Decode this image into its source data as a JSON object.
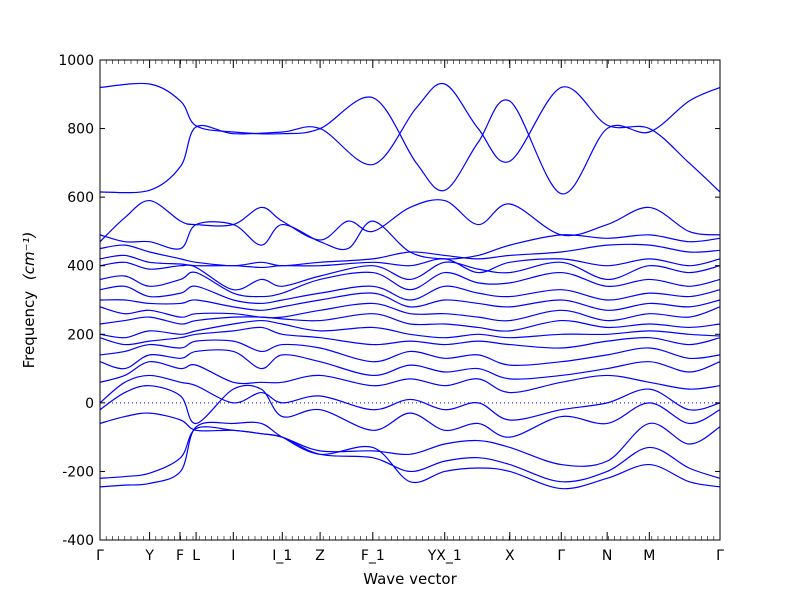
{
  "chart_data": {
    "type": "line",
    "xlabel": "Wave vector",
    "ylabel": "Frequency",
    "ylabel_unit": "(cm⁻¹)",
    "ylim": [
      -400,
      1000
    ],
    "yticks": [
      -400,
      -200,
      0,
      200,
      400,
      600,
      800,
      1000
    ],
    "xlim": [
      0,
      1
    ],
    "xticks": [
      {
        "label": "Γ",
        "x": 0.0
      },
      {
        "label": "Y",
        "x": 0.08
      },
      {
        "label": "F",
        "x": 0.129
      },
      {
        "label": "L",
        "x": 0.155
      },
      {
        "label": "I",
        "x": 0.215
      },
      {
        "label": "I_1",
        "x": 0.294
      },
      {
        "label": "Z",
        "x": 0.355
      },
      {
        "label": "F_1",
        "x": 0.44
      },
      {
        "label": "YX_1",
        "x": 0.556
      },
      {
        "label": "X",
        "x": 0.661
      },
      {
        "label": "Γ",
        "x": 0.744
      },
      {
        "label": "N",
        "x": 0.818
      },
      {
        "label": "M",
        "x": 0.886
      },
      {
        "label": "Γ",
        "x": 1.0
      }
    ],
    "zero_line": {
      "y": 0,
      "style": "dotted"
    },
    "line_color": "#0000ff",
    "series": [
      {
        "x": [
          0,
          0.08,
          0.13,
          0.155,
          0.215,
          0.294,
          0.355,
          0.44,
          0.51,
          0.556,
          0.61,
          0.661,
          0.744,
          0.818,
          0.886,
          0.95,
          1
        ],
        "y": [
          920,
          930,
          880,
          808,
          790,
          785,
          800,
          890,
          700,
          620,
          760,
          880,
          610,
          800,
          790,
          880,
          920
        ]
      },
      {
        "x": [
          0,
          0.08,
          0.13,
          0.155,
          0.215,
          0.294,
          0.355,
          0.44,
          0.51,
          0.556,
          0.61,
          0.661,
          0.744,
          0.818,
          0.886,
          0.95,
          1
        ],
        "y": [
          615,
          620,
          690,
          805,
          785,
          790,
          800,
          695,
          860,
          930,
          800,
          705,
          920,
          810,
          800,
          700,
          615
        ]
      },
      {
        "x": [
          0,
          0.04,
          0.08,
          0.13,
          0.155,
          0.215,
          0.26,
          0.294,
          0.355,
          0.4,
          0.44,
          0.5,
          0.556,
          0.61,
          0.661,
          0.744,
          0.818,
          0.886,
          0.95,
          1
        ],
        "y": [
          470,
          540,
          590,
          530,
          520,
          520,
          570,
          530,
          475,
          530,
          500,
          570,
          590,
          520,
          580,
          490,
          520,
          570,
          500,
          490
        ]
      },
      {
        "x": [
          0,
          0.04,
          0.08,
          0.13,
          0.155,
          0.215,
          0.26,
          0.294,
          0.355,
          0.4,
          0.44,
          0.5,
          0.556,
          0.61,
          0.661,
          0.744,
          0.818,
          0.886,
          0.95,
          1
        ],
        "y": [
          490,
          470,
          470,
          450,
          520,
          520,
          460,
          520,
          470,
          450,
          530,
          440,
          420,
          430,
          460,
          490,
          480,
          490,
          470,
          480
        ]
      },
      {
        "x": [
          0,
          0.04,
          0.08,
          0.13,
          0.155,
          0.215,
          0.26,
          0.294,
          0.355,
          0.44,
          0.5,
          0.556,
          0.61,
          0.661,
          0.744,
          0.818,
          0.886,
          0.95,
          1
        ],
        "y": [
          450,
          460,
          440,
          420,
          410,
          400,
          410,
          400,
          410,
          420,
          440,
          430,
          420,
          430,
          440,
          460,
          460,
          440,
          445
        ]
      },
      {
        "x": [
          0,
          0.04,
          0.08,
          0.13,
          0.155,
          0.215,
          0.26,
          0.294,
          0.355,
          0.44,
          0.5,
          0.556,
          0.61,
          0.661,
          0.744,
          0.818,
          0.886,
          0.95,
          1
        ],
        "y": [
          420,
          430,
          410,
          405,
          400,
          400,
          395,
          400,
          400,
          410,
          400,
          420,
          380,
          410,
          420,
          400,
          420,
          400,
          420
        ]
      },
      {
        "x": [
          0,
          0.04,
          0.08,
          0.13,
          0.155,
          0.215,
          0.26,
          0.294,
          0.355,
          0.44,
          0.5,
          0.556,
          0.61,
          0.661,
          0.744,
          0.818,
          0.886,
          0.95,
          1
        ],
        "y": [
          400,
          410,
          390,
          400,
          395,
          330,
          360,
          340,
          370,
          400,
          360,
          410,
          390,
          380,
          410,
          360,
          400,
          380,
          400
        ]
      },
      {
        "x": [
          0,
          0.04,
          0.08,
          0.13,
          0.155,
          0.215,
          0.26,
          0.294,
          0.355,
          0.44,
          0.5,
          0.556,
          0.61,
          0.661,
          0.744,
          0.818,
          0.886,
          0.95,
          1
        ],
        "y": [
          360,
          370,
          340,
          360,
          380,
          320,
          310,
          320,
          360,
          380,
          330,
          380,
          350,
          350,
          380,
          340,
          360,
          340,
          360
        ]
      },
      {
        "x": [
          0,
          0.04,
          0.08,
          0.13,
          0.155,
          0.215,
          0.26,
          0.294,
          0.355,
          0.44,
          0.5,
          0.556,
          0.61,
          0.661,
          0.744,
          0.818,
          0.886,
          0.95,
          1
        ],
        "y": [
          330,
          340,
          310,
          320,
          340,
          300,
          290,
          300,
          320,
          340,
          300,
          340,
          320,
          310,
          330,
          300,
          320,
          310,
          330
        ]
      },
      {
        "x": [
          0,
          0.04,
          0.08,
          0.13,
          0.155,
          0.215,
          0.26,
          0.294,
          0.355,
          0.44,
          0.5,
          0.556,
          0.61,
          0.661,
          0.744,
          0.818,
          0.886,
          0.95,
          1
        ],
        "y": [
          300,
          300,
          290,
          290,
          300,
          280,
          270,
          280,
          300,
          320,
          280,
          300,
          290,
          280,
          300,
          270,
          290,
          280,
          300
        ]
      },
      {
        "x": [
          0,
          0.04,
          0.08,
          0.13,
          0.155,
          0.215,
          0.26,
          0.294,
          0.355,
          0.44,
          0.5,
          0.556,
          0.61,
          0.661,
          0.744,
          0.818,
          0.886,
          0.95,
          1
        ],
        "y": [
          280,
          260,
          270,
          250,
          260,
          260,
          250,
          250,
          270,
          290,
          260,
          260,
          250,
          240,
          270,
          240,
          260,
          250,
          280
        ]
      },
      {
        "x": [
          0,
          0.04,
          0.08,
          0.13,
          0.155,
          0.215,
          0.26,
          0.294,
          0.355,
          0.44,
          0.5,
          0.556,
          0.61,
          0.661,
          0.744,
          0.818,
          0.886,
          0.95,
          1
        ],
        "y": [
          230,
          240,
          250,
          230,
          240,
          250,
          250,
          245,
          240,
          260,
          230,
          230,
          220,
          210,
          240,
          220,
          230,
          220,
          230
        ]
      },
      {
        "x": [
          0,
          0.04,
          0.08,
          0.13,
          0.155,
          0.215,
          0.26,
          0.294,
          0.355,
          0.44,
          0.5,
          0.556,
          0.61,
          0.661,
          0.744,
          0.818,
          0.886,
          0.95,
          1
        ],
        "y": [
          200,
          190,
          210,
          200,
          210,
          230,
          240,
          230,
          210,
          220,
          200,
          190,
          200,
          190,
          200,
          200,
          210,
          200,
          195
        ]
      },
      {
        "x": [
          0,
          0.04,
          0.08,
          0.13,
          0.155,
          0.215,
          0.26,
          0.294,
          0.355,
          0.44,
          0.5,
          0.556,
          0.61,
          0.661,
          0.744,
          0.818,
          0.886,
          0.95,
          1
        ],
        "y": [
          190,
          170,
          180,
          190,
          200,
          210,
          220,
          200,
          190,
          170,
          180,
          170,
          180,
          170,
          160,
          180,
          190,
          170,
          190
        ]
      },
      {
        "x": [
          0,
          0.04,
          0.08,
          0.13,
          0.155,
          0.215,
          0.26,
          0.294,
          0.355,
          0.44,
          0.5,
          0.556,
          0.61,
          0.661,
          0.744,
          0.818,
          0.886,
          0.95,
          1
        ],
        "y": [
          140,
          150,
          170,
          160,
          180,
          180,
          150,
          170,
          160,
          120,
          150,
          130,
          140,
          110,
          120,
          140,
          160,
          130,
          140
        ]
      },
      {
        "x": [
          0,
          0.04,
          0.08,
          0.13,
          0.155,
          0.215,
          0.26,
          0.294,
          0.355,
          0.44,
          0.5,
          0.556,
          0.61,
          0.661,
          0.744,
          0.818,
          0.886,
          0.95,
          1
        ],
        "y": [
          120,
          100,
          140,
          130,
          150,
          150,
          100,
          140,
          120,
          80,
          110,
          90,
          100,
          70,
          80,
          100,
          120,
          90,
          120
        ]
      },
      {
        "x": [
          0,
          0.04,
          0.08,
          0.13,
          0.155,
          0.215,
          0.26,
          0.294,
          0.355,
          0.44,
          0.5,
          0.556,
          0.61,
          0.661,
          0.744,
          0.818,
          0.886,
          0.95,
          1
        ],
        "y": [
          60,
          80,
          120,
          100,
          110,
          60,
          60,
          60,
          80,
          50,
          70,
          50,
          70,
          30,
          60,
          80,
          60,
          40,
          50
        ]
      },
      {
        "x": [
          0,
          0.04,
          0.08,
          0.13,
          0.155,
          0.215,
          0.26,
          0.294,
          0.355,
          0.44,
          0.5,
          0.556,
          0.61,
          0.661,
          0.744,
          0.818,
          0.886,
          0.95,
          1
        ],
        "y": [
          0,
          60,
          80,
          60,
          50,
          0,
          30,
          0,
          20,
          -20,
          10,
          -20,
          0,
          -50,
          -20,
          0,
          40,
          -20,
          0
        ]
      },
      {
        "x": [
          0,
          0.04,
          0.08,
          0.13,
          0.155,
          0.215,
          0.26,
          0.294,
          0.355,
          0.44,
          0.5,
          0.556,
          0.61,
          0.661,
          0.744,
          0.818,
          0.886,
          0.95,
          1
        ],
        "y": [
          -20,
          30,
          50,
          20,
          -60,
          40,
          40,
          -40,
          -20,
          -80,
          -30,
          -80,
          -60,
          -100,
          -40,
          -60,
          0,
          -60,
          -20
        ]
      },
      {
        "x": [
          0,
          0.04,
          0.08,
          0.13,
          0.155,
          0.215,
          0.26,
          0.294,
          0.355,
          0.44,
          0.5,
          0.556,
          0.61,
          0.661,
          0.744,
          0.818,
          0.886,
          0.95,
          1
        ],
        "y": [
          -60,
          -40,
          -30,
          -50,
          -80,
          -80,
          -90,
          -100,
          -140,
          -140,
          -150,
          -120,
          -110,
          -130,
          -180,
          -170,
          -60,
          -120,
          -70
        ]
      },
      {
        "x": [
          0,
          0.04,
          0.08,
          0.13,
          0.155,
          0.215,
          0.26,
          0.294,
          0.355,
          0.44,
          0.5,
          0.556,
          0.61,
          0.661,
          0.744,
          0.818,
          0.886,
          0.95,
          1
        ],
        "y": [
          -220,
          -215,
          -205,
          -160,
          -75,
          -80,
          -90,
          -100,
          -150,
          -160,
          -200,
          -170,
          -160,
          -180,
          -230,
          -200,
          -130,
          -190,
          -220
        ]
      },
      {
        "x": [
          0,
          0.04,
          0.08,
          0.13,
          0.155,
          0.215,
          0.26,
          0.294,
          0.355,
          0.44,
          0.5,
          0.556,
          0.61,
          0.661,
          0.744,
          0.818,
          0.886,
          0.95,
          1
        ],
        "y": [
          -245,
          -240,
          -235,
          -200,
          -70,
          -60,
          -60,
          -100,
          -150,
          -130,
          -230,
          -200,
          -190,
          -200,
          -250,
          -220,
          -180,
          -230,
          -245
        ]
      }
    ]
  }
}
